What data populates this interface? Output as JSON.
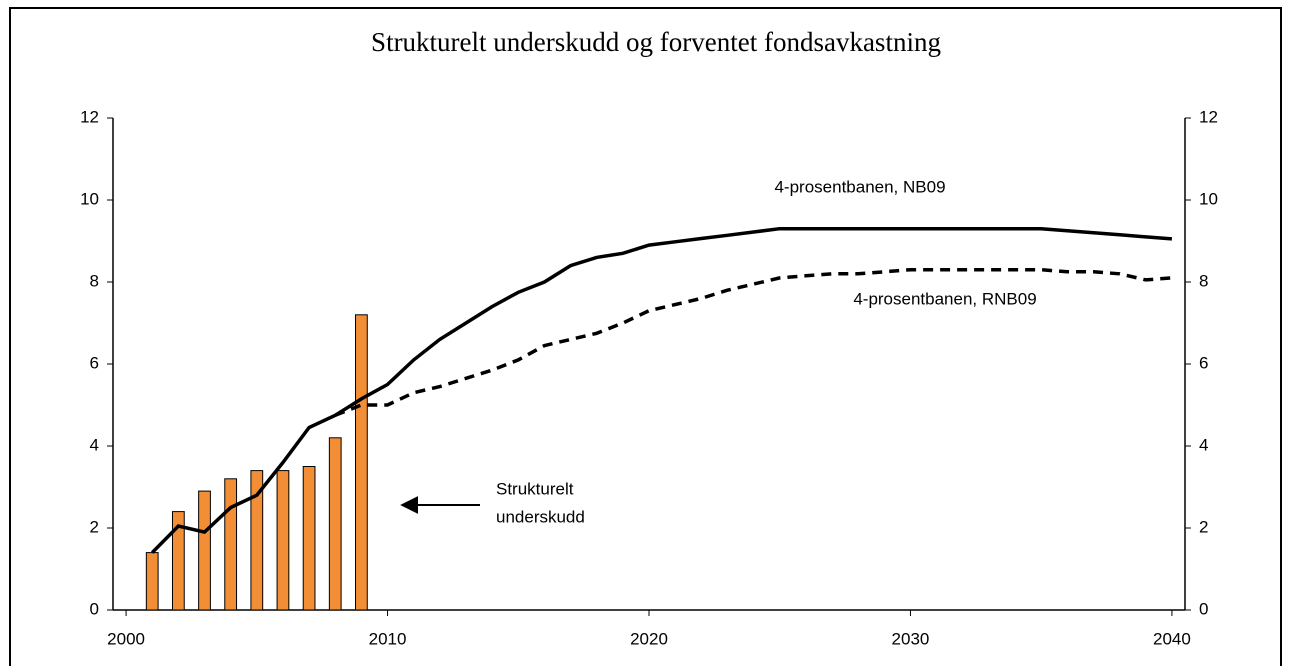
{
  "chart_data": {
    "type": "bar_line",
    "title": "Strukturelt underskudd og forventet fondsavkastning",
    "x": [
      2001,
      2002,
      2003,
      2004,
      2005,
      2006,
      2007,
      2008,
      2009,
      2010,
      2011,
      2012,
      2013,
      2014,
      2015,
      2016,
      2017,
      2018,
      2019,
      2020,
      2021,
      2022,
      2023,
      2024,
      2025,
      2026,
      2027,
      2028,
      2029,
      2030,
      2031,
      2032,
      2033,
      2034,
      2035,
      2036,
      2037,
      2038,
      2039,
      2040
    ],
    "series": [
      {
        "name": "Strukturelt underskudd",
        "kind": "bar",
        "color": "#f28e35",
        "values": [
          1.4,
          2.4,
          2.9,
          3.2,
          3.4,
          3.4,
          3.5,
          4.2,
          7.2,
          null,
          null,
          null,
          null,
          null,
          null,
          null,
          null,
          null,
          null,
          null,
          null,
          null,
          null,
          null,
          null,
          null,
          null,
          null,
          null,
          null,
          null,
          null,
          null,
          null,
          null,
          null,
          null,
          null,
          null,
          null
        ]
      },
      {
        "name": "4-prosentbanen, NB09",
        "kind": "line",
        "color": "#000000",
        "dash": false,
        "values": [
          1.4,
          2.05,
          1.9,
          2.5,
          2.8,
          3.6,
          4.45,
          4.75,
          5.15,
          5.5,
          6.1,
          6.6,
          7.0,
          7.4,
          7.75,
          8.0,
          8.4,
          8.6,
          8.7,
          8.9,
          8.98,
          9.06,
          9.14,
          9.22,
          9.3,
          9.3,
          9.3,
          9.3,
          9.3,
          9.3,
          9.3,
          9.3,
          9.3,
          9.3,
          9.3,
          9.25,
          9.2,
          9.15,
          9.1,
          9.05
        ]
      },
      {
        "name": "4-prosentbanen, RNB09",
        "kind": "line",
        "color": "#000000",
        "dash": true,
        "values": [
          null,
          null,
          null,
          null,
          null,
          null,
          null,
          4.75,
          5.0,
          5.0,
          5.3,
          5.45,
          5.65,
          5.85,
          6.1,
          6.45,
          6.6,
          6.75,
          7.0,
          7.3,
          7.45,
          7.6,
          7.8,
          7.95,
          8.1,
          8.15,
          8.2,
          8.2,
          8.25,
          8.3,
          8.3,
          8.3,
          8.3,
          8.3,
          8.3,
          8.25,
          8.25,
          8.2,
          8.05,
          8.1
        ]
      }
    ],
    "annotation_lines": [
      "Strukturelt",
      "underskudd"
    ],
    "xlim": [
      1999.5,
      2040.5
    ],
    "xticks": [
      2000,
      2010,
      2020,
      2030,
      2040
    ],
    "ylim": [
      0,
      12
    ],
    "yticks": [
      0,
      2,
      4,
      6,
      8,
      10,
      12
    ],
    "y2lim": [
      0,
      12
    ],
    "y2ticks": [
      0,
      2,
      4,
      6,
      8,
      10,
      12
    ],
    "grid": false
  }
}
